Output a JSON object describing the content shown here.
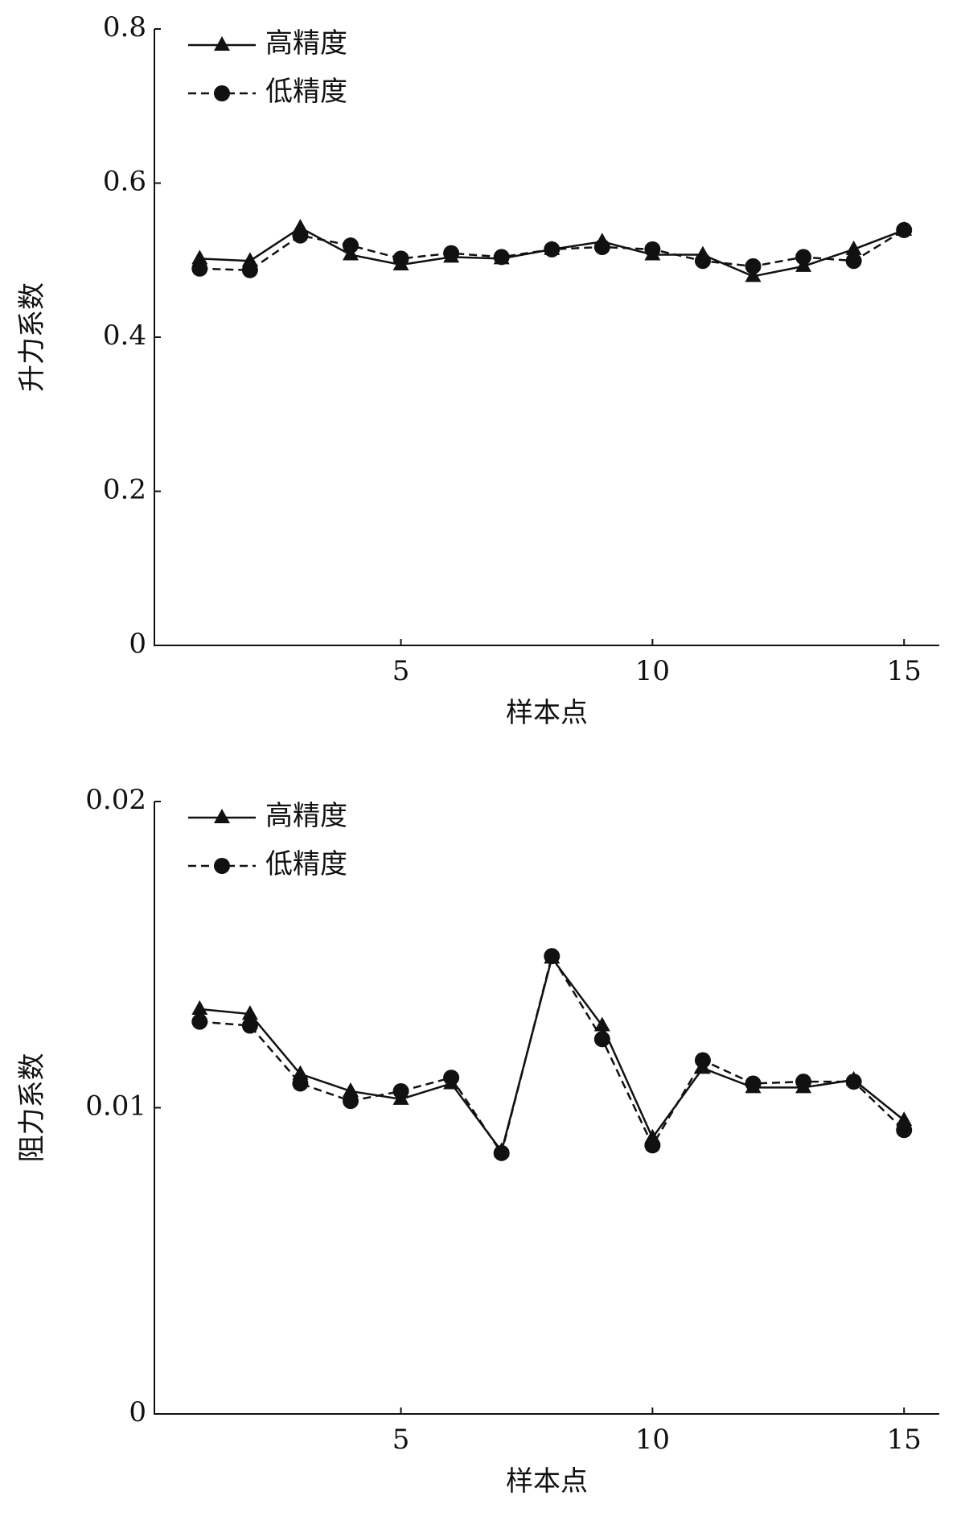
{
  "chart_data": [
    {
      "type": "line",
      "ylabel": "升力系数",
      "xlabel": "样本点",
      "x": [
        1,
        2,
        3,
        4,
        5,
        6,
        7,
        8,
        9,
        10,
        11,
        12,
        13,
        14,
        15
      ],
      "xlim": [
        0.1,
        15.7
      ],
      "xticks": [
        5,
        10,
        15
      ],
      "ylim": [
        0,
        0.8
      ],
      "yticks": [
        0,
        0.2,
        0.4,
        0.6,
        0.8
      ],
      "legend": "upper left",
      "series": [
        {
          "name": "高精度",
          "color": "#111111",
          "marker": "triangle",
          "line_style": "solid",
          "values": [
            0.502,
            0.499,
            0.542,
            0.507,
            0.494,
            0.504,
            0.502,
            0.514,
            0.524,
            0.507,
            0.507,
            0.479,
            0.492,
            0.514,
            0.539
          ]
        },
        {
          "name": "低精度",
          "color": "#111111",
          "marker": "circle",
          "line_style": "dashed",
          "values": [
            0.489,
            0.487,
            0.532,
            0.519,
            0.502,
            0.509,
            0.504,
            0.514,
            0.517,
            0.514,
            0.499,
            0.492,
            0.504,
            0.499,
            0.539
          ]
        }
      ]
    },
    {
      "type": "line",
      "ylabel": "阻力系数",
      "xlabel": "样本点",
      "x": [
        1,
        2,
        3,
        4,
        5,
        6,
        7,
        8,
        9,
        10,
        11,
        12,
        13,
        14,
        15
      ],
      "xlim": [
        0.1,
        15.7
      ],
      "xticks": [
        5,
        10,
        15
      ],
      "ylim": [
        0,
        0.02
      ],
      "yticks": [
        0,
        0.01,
        0.02
      ],
      "legend": "upper left",
      "series": [
        {
          "name": "高精度",
          "color": "#111111",
          "marker": "triangle",
          "line_style": "solid",
          "values": [
            0.01322,
            0.01306,
            0.0111,
            0.01054,
            0.01028,
            0.01079,
            0.00858,
            0.01489,
            0.01268,
            0.00902,
            0.01129,
            0.01066,
            0.01066,
            0.01091,
            0.00959
          ]
        },
        {
          "name": "低精度",
          "color": "#111111",
          "marker": "circle",
          "line_style": "dashed",
          "values": [
            0.01281,
            0.01268,
            0.01079,
            0.01022,
            0.01054,
            0.01098,
            0.00852,
            0.01495,
            0.01224,
            0.00877,
            0.01155,
            0.01079,
            0.01085,
            0.01085,
            0.00927
          ]
        }
      ]
    }
  ]
}
